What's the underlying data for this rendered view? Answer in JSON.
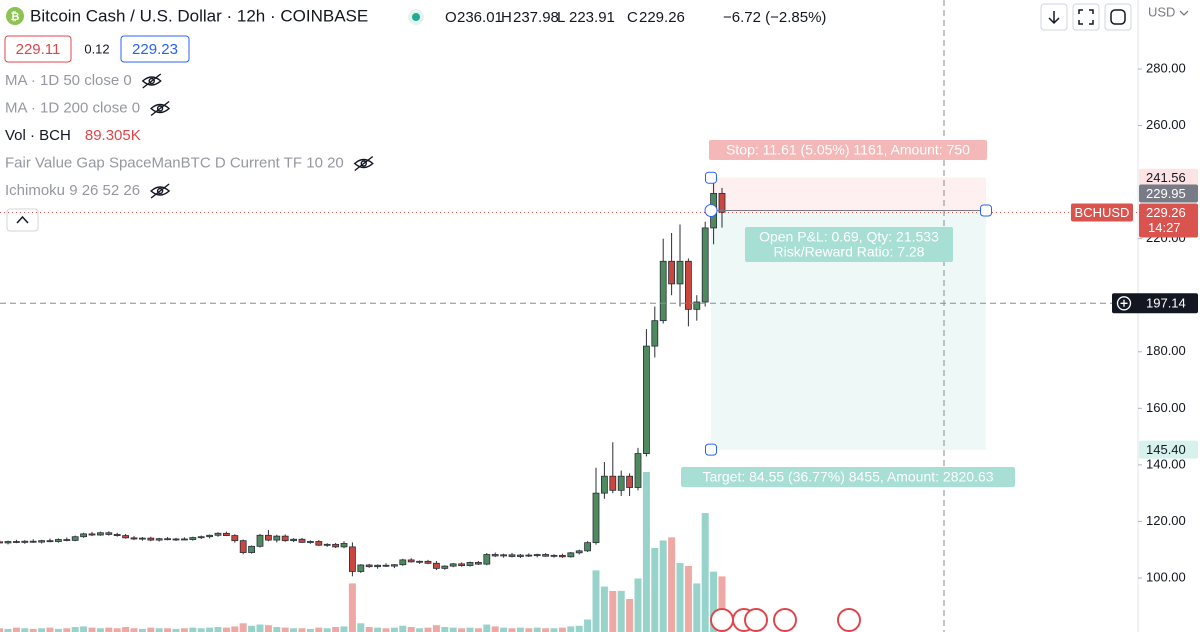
{
  "header": {
    "title": "Bitcoin Cash / U.S. Dollar · 12h · COINBASE",
    "ohlc": [
      {
        "label": "O",
        "value": "236.01"
      },
      {
        "label": "H",
        "value": "237.98"
      },
      {
        "label": "L",
        "value": "223.91"
      },
      {
        "label": "C",
        "value": "229.26"
      }
    ],
    "change": "−6.72 (−2.85%)",
    "bid": "229.11",
    "spread": "0.12",
    "ask": "229.23",
    "currency": "USD"
  },
  "indicators": [
    {
      "name": "MA · 1D 50 close 0"
    },
    {
      "name": "MA · 1D 200 close 0"
    },
    {
      "name": "Vol · BCH",
      "value": "89.305K"
    },
    {
      "name": "Fair Value Gap SpaceManBTC D Current TF 10 20"
    },
    {
      "name": "Ichimoku 9 26 52 26"
    }
  ],
  "chart_data": {
    "type": "candlestick",
    "symbol": "BCHUSD",
    "ylim": [
      80.9,
      304.4
    ],
    "yticks": [
      {
        "value": 280,
        "label": "280.00"
      },
      {
        "value": 260,
        "label": "260.00"
      },
      {
        "value": 220,
        "label": "220.00"
      },
      {
        "value": 180,
        "label": "180.00"
      },
      {
        "value": 160,
        "label": "160.00"
      },
      {
        "value": 140,
        "label": "140.00"
      },
      {
        "value": 120,
        "label": "120.00"
      },
      {
        "value": 100,
        "label": "100.00"
      }
    ],
    "up_color": "#4f8a5f",
    "down_color": "#c9473f",
    "volume_up_color": "#97d3cb",
    "volume_down_color": "#efa9a5",
    "candles": [
      [
        112.8,
        113.6,
        112.0,
        112.4
      ],
      [
        112.4,
        113.2,
        111.9,
        112.9
      ],
      [
        112.9,
        113.5,
        112.3,
        112.6
      ],
      [
        112.6,
        113.4,
        112.1,
        113.0
      ],
      [
        113.0,
        113.7,
        112.4,
        112.7
      ],
      [
        112.7,
        113.5,
        112.2,
        113.2
      ],
      [
        113.2,
        113.9,
        112.6,
        112.9
      ],
      [
        112.9,
        114.0,
        112.5,
        113.6
      ],
      [
        113.6,
        114.3,
        113.0,
        113.3
      ],
      [
        113.3,
        115.0,
        113.0,
        114.6
      ],
      [
        114.6,
        116.0,
        114.2,
        115.6
      ],
      [
        115.6,
        116.3,
        114.8,
        115.2
      ],
      [
        115.2,
        116.4,
        114.9,
        116.0
      ],
      [
        116.0,
        116.5,
        115.0,
        115.4
      ],
      [
        115.4,
        116.0,
        114.6,
        115.0
      ],
      [
        115.0,
        115.6,
        113.9,
        114.2
      ],
      [
        114.2,
        114.8,
        113.4,
        113.8
      ],
      [
        113.8,
        114.5,
        113.2,
        114.1
      ],
      [
        114.1,
        114.6,
        113.0,
        113.4
      ],
      [
        113.4,
        114.2,
        112.9,
        113.9
      ],
      [
        113.9,
        114.5,
        113.3,
        113.6
      ],
      [
        113.6,
        114.2,
        113.1,
        113.8
      ],
      [
        113.8,
        114.4,
        113.4,
        113.6
      ],
      [
        113.6,
        114.6,
        113.2,
        114.3
      ],
      [
        114.3,
        115.0,
        113.8,
        114.6
      ],
      [
        114.6,
        115.4,
        114.0,
        115.1
      ],
      [
        115.1,
        116.2,
        114.6,
        115.8
      ],
      [
        115.8,
        116.4,
        114.8,
        115.0
      ],
      [
        115.0,
        115.5,
        112.5,
        113.2
      ],
      [
        113.2,
        113.6,
        108.4,
        109.0
      ],
      [
        109.0,
        111.5,
        108.6,
        111.2
      ],
      [
        111.2,
        115.6,
        110.8,
        115.1
      ],
      [
        115.1,
        117.0,
        113.0,
        113.4
      ],
      [
        113.4,
        115.3,
        112.6,
        114.8
      ],
      [
        114.8,
        115.4,
        112.8,
        113.2
      ],
      [
        113.2,
        114.1,
        112.7,
        113.7
      ],
      [
        113.7,
        114.2,
        112.4,
        112.6
      ],
      [
        112.6,
        113.3,
        112.1,
        112.9
      ],
      [
        112.9,
        113.4,
        111.3,
        111.6
      ],
      [
        111.6,
        112.3,
        111.0,
        111.9
      ],
      [
        111.9,
        112.4,
        110.6,
        111.0
      ],
      [
        111.0,
        113.0,
        110.5,
        112.2
      ],
      [
        111.0,
        112.6,
        100.6,
        102.3
      ],
      [
        102.3,
        104.9,
        101.8,
        104.6
      ],
      [
        104.6,
        105.0,
        103.6,
        104.0
      ],
      [
        104.0,
        104.8,
        103.3,
        104.5
      ],
      [
        104.5,
        105.2,
        103.9,
        104.2
      ],
      [
        104.2,
        104.9,
        103.5,
        104.7
      ],
      [
        104.7,
        106.8,
        104.3,
        106.4
      ],
      [
        106.4,
        107.0,
        105.4,
        105.7
      ],
      [
        105.7,
        106.2,
        105.0,
        105.9
      ],
      [
        105.9,
        106.4,
        104.9,
        105.2
      ],
      [
        105.2,
        106.0,
        102.8,
        103.4
      ],
      [
        103.4,
        104.5,
        102.9,
        104.2
      ],
      [
        104.2,
        105.3,
        103.8,
        105.0
      ],
      [
        105.0,
        105.5,
        104.0,
        104.4
      ],
      [
        104.4,
        105.8,
        104.0,
        105.5
      ],
      [
        105.5,
        106.0,
        104.6,
        104.9
      ],
      [
        104.9,
        108.8,
        104.5,
        108.3
      ],
      [
        108.3,
        109.0,
        107.4,
        107.8
      ],
      [
        107.8,
        108.6,
        107.2,
        108.2
      ],
      [
        108.2,
        108.9,
        107.3,
        107.6
      ],
      [
        107.6,
        108.5,
        107.1,
        108.1
      ],
      [
        108.1,
        108.7,
        107.4,
        107.9
      ],
      [
        107.9,
        108.6,
        107.3,
        108.3
      ],
      [
        108.3,
        108.8,
        107.5,
        107.7
      ],
      [
        107.7,
        108.4,
        107.2,
        108.0
      ],
      [
        108.0,
        108.6,
        107.1,
        107.5
      ],
      [
        107.5,
        109.2,
        107.2,
        108.9
      ],
      [
        108.9,
        110.0,
        108.3,
        109.6
      ],
      [
        109.6,
        113.0,
        109.2,
        112.5
      ],
      [
        112.5,
        139.0,
        111.8,
        130.0
      ],
      [
        130.0,
        141.0,
        128.0,
        136.0
      ],
      [
        136.0,
        148.0,
        130.0,
        131.0
      ],
      [
        131.0,
        138.0,
        129.0,
        136.0
      ],
      [
        136.0,
        137.0,
        129.0,
        132.0
      ],
      [
        132.0,
        146.0,
        131.0,
        144.0
      ],
      [
        144.0,
        188.0,
        143.0,
        182.0
      ],
      [
        182.0,
        196.0,
        178.0,
        191.0
      ],
      [
        191.0,
        220.0,
        190.0,
        212.0
      ],
      [
        212.0,
        222.0,
        200.0,
        204.0
      ],
      [
        204.0,
        225.0,
        196.0,
        212.0
      ],
      [
        212.0,
        213.0,
        189.0,
        195.0
      ],
      [
        195.0,
        200.0,
        191.0,
        197.6
      ],
      [
        197.6,
        226.0,
        196.0,
        223.8
      ],
      [
        223.8,
        240.0,
        218.0,
        236.0
      ],
      [
        236.01,
        237.98,
        223.91,
        229.26
      ]
    ],
    "volumes": [
      6,
      5,
      7,
      6,
      5,
      6,
      7,
      5,
      6,
      8,
      9,
      7,
      6,
      7,
      6,
      8,
      6,
      5,
      7,
      6,
      6,
      5,
      6,
      7,
      6,
      7,
      8,
      7,
      9,
      14,
      10,
      12,
      11,
      8,
      7,
      6,
      6,
      5,
      7,
      6,
      8,
      9,
      78,
      14,
      8,
      7,
      6,
      7,
      10,
      8,
      6,
      7,
      11,
      8,
      7,
      6,
      7,
      6,
      12,
      9,
      7,
      6,
      7,
      6,
      7,
      6,
      6,
      7,
      9,
      10,
      20,
      99,
      73,
      66,
      66,
      53,
      86,
      257,
      135,
      147,
      152,
      111,
      106,
      78,
      191,
      97,
      89.305
    ],
    "position": {
      "stop": 241.56,
      "entry": 229.95,
      "target": {
        "value": 145.4,
        "label": "145.40"
      },
      "stop_label": "Stop: 11.61 (5.05%) 1161, Amount: 750",
      "pnl_label": "Open P&L: 0.69, Qty: 21.533",
      "rr_label": "Risk/Reward Ratio: 7.28",
      "target_label": "Target: 84.55 (36.77%) 8455, Amount: 2820.63"
    },
    "last_price": 229.26,
    "countdown": "14:27",
    "crosshair_price": 197.14
  }
}
